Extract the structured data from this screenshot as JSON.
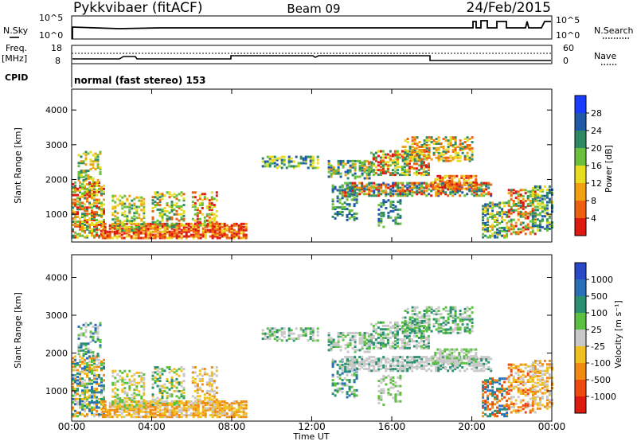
{
  "header": {
    "radar": "Pykkvibaer (fitACF)",
    "beam": "Beam 09",
    "date": "24/Feb/2015"
  },
  "aux_panels": {
    "nsky_label": "N.Sky",
    "nsky_ticks": [
      "10^5",
      "10^0"
    ],
    "nsearch_label": "N.Search",
    "nsearch_ticks": [
      "10^5",
      "10^0"
    ],
    "freq_label_1": "Freq.",
    "freq_label_2": "[MHz]",
    "freq_ticks": [
      "18",
      "8"
    ],
    "nave_label": "Nave",
    "nave_ticks": [
      "60",
      "0"
    ],
    "cpid_label": "CPID",
    "cpid_text": "normal (fast stereo) 153"
  },
  "chart_data": [
    {
      "type": "heatmap",
      "quantity": "power",
      "ylabel": "Slant Range [km]",
      "yticks": [
        "1000",
        "2000",
        "3000",
        "4000"
      ],
      "ylim": [
        200,
        4600
      ],
      "colorbar_label": "Power [dB]",
      "colorbar_ticks": [
        "4",
        "8",
        "12",
        "16",
        "20",
        "24",
        "28"
      ],
      "colorbar_colors": [
        "#1a3cff",
        "#1f5aa8",
        "#2f8a63",
        "#6abf3c",
        "#e8dc20",
        "#f0a010",
        "#ee6010",
        "#dd1a10"
      ]
    },
    {
      "type": "heatmap",
      "quantity": "velocity",
      "ylabel": "Slant Range [km]",
      "yticks": [
        "1000",
        "2000",
        "3000",
        "4000"
      ],
      "ylim": [
        200,
        4600
      ],
      "colorbar_label": "Velocity [m s⁻¹]",
      "colorbar_ticks": [
        "1000",
        "500",
        "100",
        "25",
        "-25",
        "-100",
        "-500",
        "-1000"
      ],
      "colorbar_colors": [
        "#2a48c8",
        "#2a70b8",
        "#2a9070",
        "#5cc040",
        "#c8c8c8",
        "#f0c020",
        "#f08a10",
        "#ee4a10",
        "#dd1a10"
      ],
      "xlabel": "Time UT",
      "xticks": [
        "00:00",
        "04:00",
        "08:00",
        "12:00",
        "16:00",
        "20:00",
        "00:00"
      ]
    }
  ]
}
